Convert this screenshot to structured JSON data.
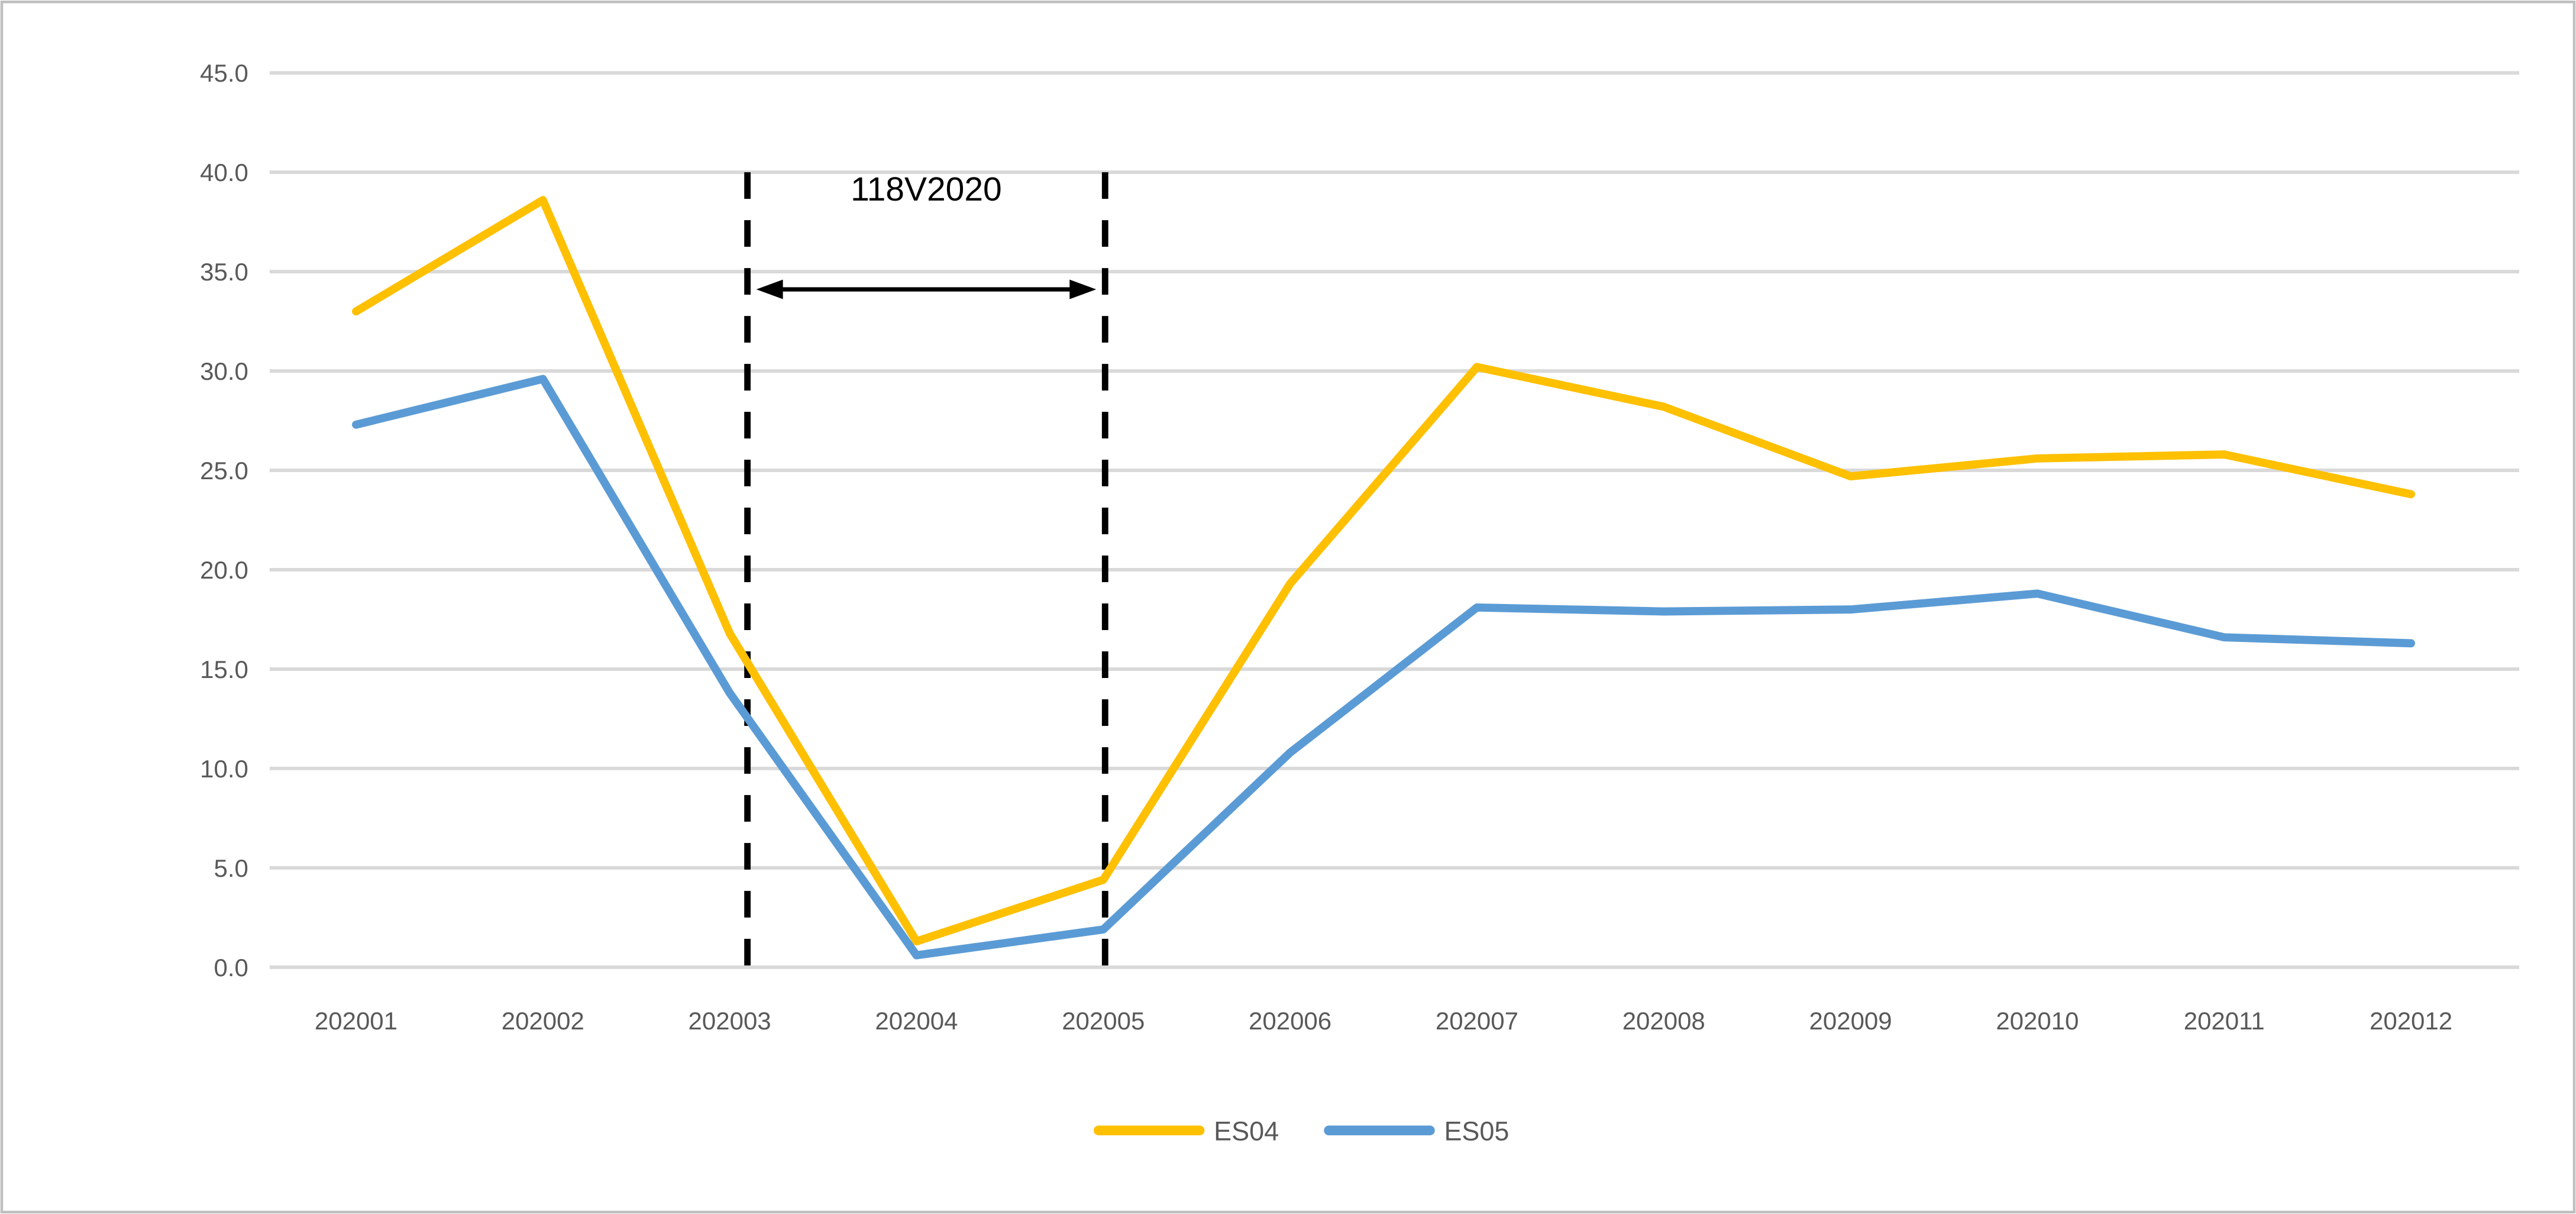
{
  "chart_data": {
    "type": "line",
    "title": "",
    "categories": [
      "202001",
      "202002",
      "202003",
      "202004",
      "202005",
      "202006",
      "202007",
      "202008",
      "202009",
      "202010",
      "202011",
      "202012"
    ],
    "series": [
      {
        "name": "ES04",
        "color": "#FFC000",
        "values": [
          33.0,
          38.6,
          16.8,
          1.3,
          4.4,
          19.3,
          30.2,
          28.2,
          24.7,
          25.6,
          25.8,
          23.8
        ]
      },
      {
        "name": "ES05",
        "color": "#5B9BD5",
        "values": [
          27.3,
          29.6,
          13.8,
          0.6,
          1.9,
          10.8,
          18.1,
          17.9,
          18.0,
          18.8,
          16.6,
          16.3
        ]
      }
    ],
    "ylim": [
      0,
      45
    ],
    "ytick_step": 5,
    "ytick_labels": [
      "0.0",
      "5.0",
      "10.0",
      "15.0",
      "20.0",
      "25.0",
      "30.0",
      "35.0",
      "40.0",
      "45.0"
    ],
    "xlabel": "",
    "ylabel": "",
    "grid": true,
    "legend_position": "bottom",
    "annotation": {
      "label": "118V2020",
      "from_category": "202003",
      "to_category": "202005",
      "arrow": "double-headed"
    }
  },
  "colors": {
    "background": "#FFFFFF",
    "border": "#BFBFBF",
    "gridline": "#D9D9D9",
    "axis_text": "#595959",
    "annotation": "#000000"
  }
}
